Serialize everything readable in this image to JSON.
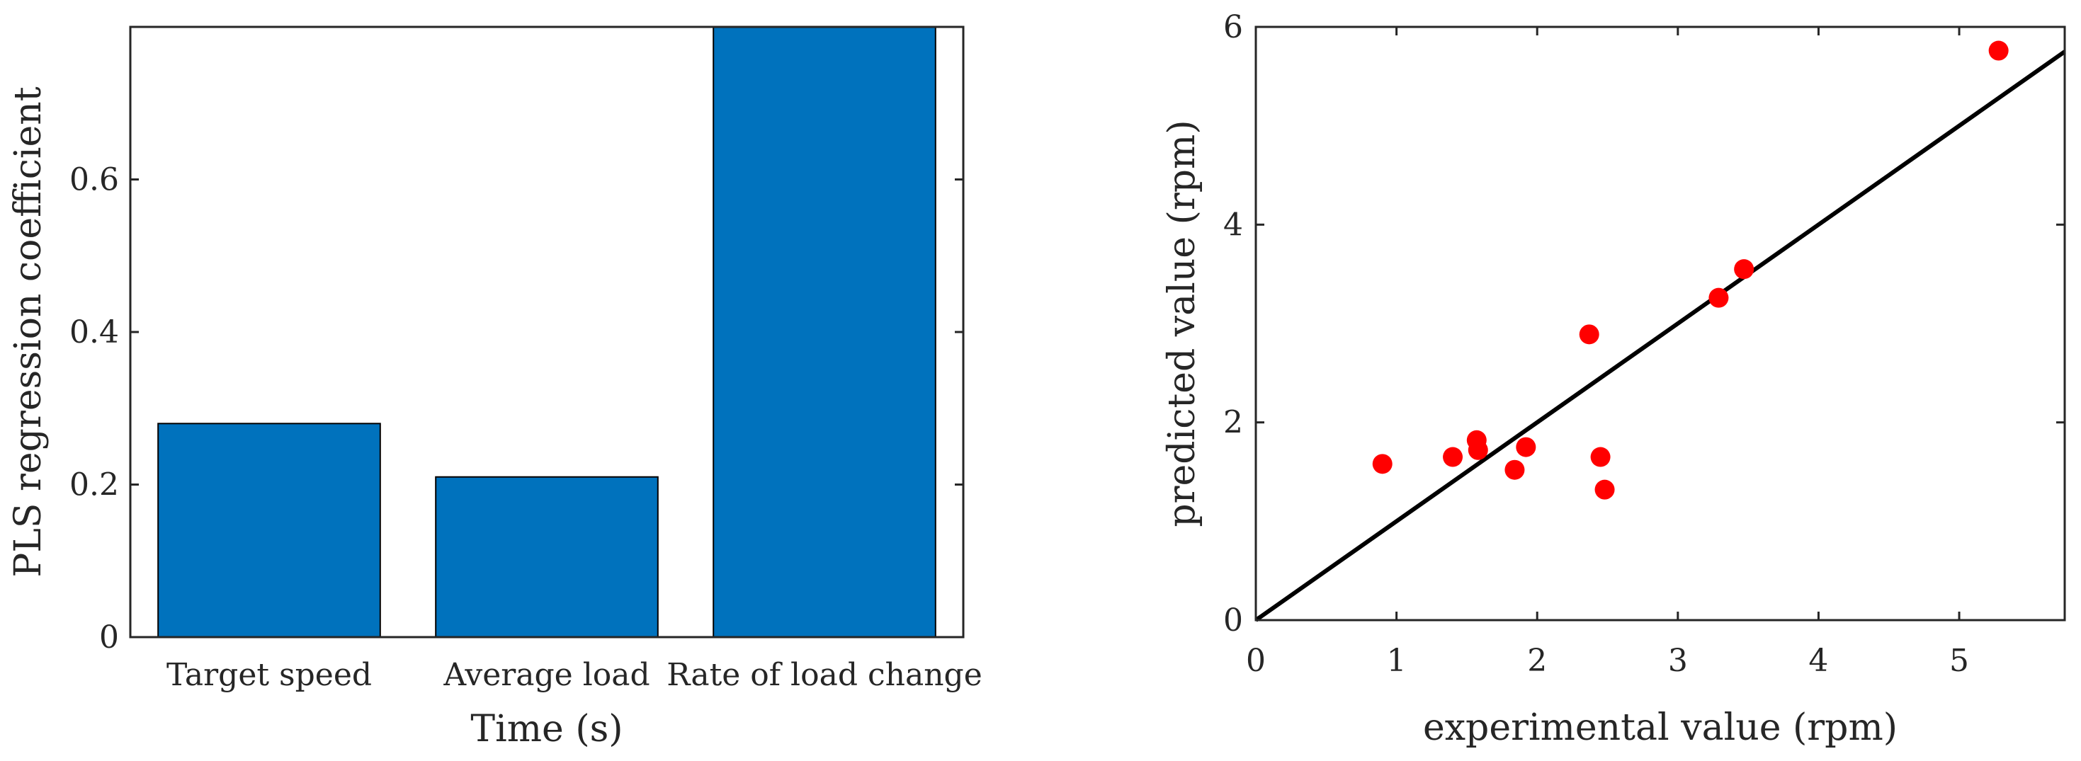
{
  "chart_data": [
    {
      "type": "bar",
      "categories": [
        "Target speed",
        "Average load",
        "Rate of load change"
      ],
      "values": [
        0.28,
        0.21,
        0.8
      ],
      "title": "",
      "xlabel": "Time (s)",
      "ylabel": "PLS regression coefficient",
      "ylim": [
        0,
        0.8
      ],
      "yticks": [
        0,
        0.2,
        0.4,
        0.6
      ],
      "ytick_labels": [
        "0",
        "0.2",
        "0.4",
        "0.6"
      ],
      "grid": false,
      "bar_color": "#0072BD"
    },
    {
      "type": "scatter",
      "title": "",
      "xlabel": "experimental value (rpm)",
      "ylabel": "predicted value (rpm)",
      "xlim": [
        0,
        5.75
      ],
      "ylim": [
        0,
        6
      ],
      "xticks": [
        0,
        1,
        2,
        3,
        4,
        5
      ],
      "xtick_labels": [
        "0",
        "1",
        "2",
        "3",
        "4",
        "5"
      ],
      "yticks": [
        0,
        2,
        4,
        6
      ],
      "ytick_labels": [
        "0",
        "2",
        "4",
        "6"
      ],
      "grid": false,
      "points": {
        "x": [
          0.9,
          1.4,
          1.57,
          1.58,
          1.84,
          1.92,
          2.37,
          2.45,
          2.48,
          3.29,
          3.47,
          5.28
        ],
        "y": [
          1.58,
          1.65,
          1.82,
          1.72,
          1.52,
          1.75,
          2.89,
          1.65,
          1.32,
          3.26,
          3.55,
          5.76
        ]
      },
      "point_color": "#FF0000",
      "fit_line": {
        "x": [
          0,
          5.75
        ],
        "y": [
          0,
          5.75
        ]
      },
      "line_color": "#000000"
    }
  ]
}
